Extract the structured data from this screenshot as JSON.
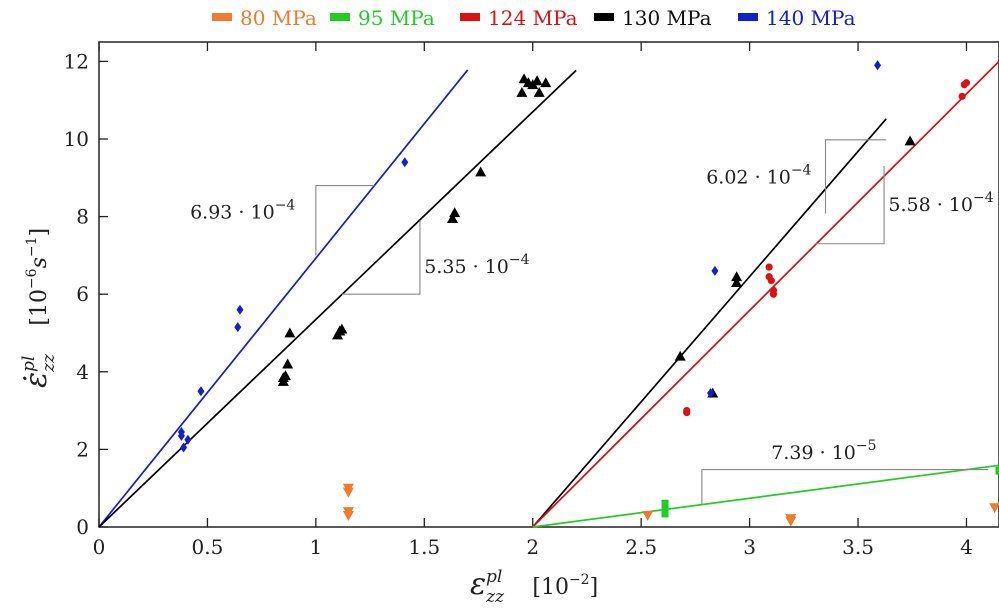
{
  "chart_data": {
    "type": "scatter",
    "xlabel": "ε̇zz^pl [10^-2]",
    "ylabel": "ε̇zz^pl [10^-6 s^-1]",
    "xlabel_parts": {
      "symbol": "ε",
      "sub": "zz",
      "sup": "pl",
      "unit": "[10",
      "unit_exp": "−2",
      "unit_end": "]"
    },
    "ylabel_parts": {
      "symbol": "ε̇",
      "sub": "zz",
      "sup": "pl",
      "unit": "[10",
      "unit_exp": "−6",
      "unit_mid": "s",
      "unit_exp2": "−1",
      "unit_end": "]"
    },
    "xlim": [
      0,
      4.15
    ],
    "ylim": [
      0,
      12.5
    ],
    "x_ticks": [
      0,
      0.5,
      1,
      1.5,
      2,
      2.5,
      3,
      3.5,
      4
    ],
    "x_tick_labels": [
      "0",
      "0.5",
      "1",
      "1.5",
      "2",
      "2.5",
      "3",
      "3.5",
      "4"
    ],
    "y_ticks": [
      0,
      2,
      4,
      6,
      8,
      10,
      12
    ],
    "y_tick_labels": [
      "0",
      "2",
      "4",
      "6",
      "8",
      "10",
      "12"
    ],
    "legend_placement": "top",
    "legend": [
      {
        "label": "80 MPa",
        "color": "#f07b2c"
      },
      {
        "label": "95 MPa",
        "color": "#22cc22"
      },
      {
        "label": "124 MPa",
        "color": "#dd1111"
      },
      {
        "label": "130 MPa",
        "color": "#000000"
      },
      {
        "label": "140 MPa",
        "color": "#1020cc"
      }
    ],
    "series": [
      {
        "name": "80 MPa",
        "color": "#f07b2c",
        "marker": "triangle-down",
        "points": [
          [
            1.15,
            0.9
          ],
          [
            1.15,
            1.0
          ],
          [
            1.15,
            0.3
          ],
          [
            1.15,
            0.4
          ],
          [
            2.53,
            0.3
          ],
          [
            3.19,
            0.15
          ],
          [
            3.19,
            0.22
          ],
          [
            4.13,
            0.5
          ]
        ]
      },
      {
        "name": "95 MPa",
        "color": "#22cc22",
        "marker": "square",
        "points": [
          [
            2.61,
            0.35
          ],
          [
            2.61,
            0.5
          ],
          [
            2.61,
            0.6
          ],
          [
            4.15,
            1.45
          ]
        ]
      },
      {
        "name": "124 MPa",
        "color": "#dd1111",
        "marker": "circle",
        "points": [
          [
            2.71,
            2.95
          ],
          [
            2.71,
            3.0
          ],
          [
            3.09,
            6.7
          ],
          [
            3.09,
            6.45
          ],
          [
            3.1,
            6.35
          ],
          [
            3.11,
            6.1
          ],
          [
            3.11,
            6.0
          ],
          [
            3.98,
            11.1
          ],
          [
            3.99,
            11.4
          ],
          [
            4.0,
            11.45
          ]
        ]
      },
      {
        "name": "130 MPa",
        "color": "#000000",
        "marker": "triangle-up",
        "points": [
          [
            0.85,
            3.75
          ],
          [
            0.85,
            3.85
          ],
          [
            0.86,
            3.9
          ],
          [
            0.87,
            4.2
          ],
          [
            0.88,
            5.0
          ],
          [
            1.1,
            4.95
          ],
          [
            1.11,
            5.05
          ],
          [
            1.12,
            5.1
          ],
          [
            1.63,
            7.95
          ],
          [
            1.64,
            8.1
          ],
          [
            1.76,
            9.15
          ],
          [
            1.95,
            11.2
          ],
          [
            1.96,
            11.55
          ],
          [
            1.98,
            11.45
          ],
          [
            2.0,
            11.4
          ],
          [
            2.02,
            11.5
          ],
          [
            2.03,
            11.2
          ],
          [
            2.06,
            11.45
          ],
          [
            2.68,
            4.4
          ],
          [
            2.83,
            3.45
          ],
          [
            2.94,
            6.3
          ],
          [
            2.94,
            6.45
          ],
          [
            3.74,
            9.95
          ]
        ]
      },
      {
        "name": "140 MPa",
        "color": "#1020cc",
        "marker": "diamond",
        "points": [
          [
            0.38,
            2.45
          ],
          [
            0.38,
            2.35
          ],
          [
            0.39,
            2.05
          ],
          [
            0.41,
            2.25
          ],
          [
            0.47,
            3.5
          ],
          [
            0.64,
            5.15
          ],
          [
            0.65,
            5.6
          ],
          [
            1.41,
            9.4
          ],
          [
            2.82,
            3.45
          ],
          [
            2.84,
            6.6
          ],
          [
            3.59,
            11.9
          ]
        ]
      }
    ],
    "fit_lines": [
      {
        "name": "140 MPa fit",
        "color": "#1020cc",
        "x1": 0,
        "y1": 0,
        "x2": 1.7,
        "y2": 11.78
      },
      {
        "name": "130 MPa fit A",
        "color": "#000000",
        "x1": 0,
        "y1": 0,
        "x2": 2.2,
        "y2": 11.77
      },
      {
        "name": "130 MPa fit B",
        "color": "#000000",
        "x1": 2.0,
        "y1": 0,
        "x2": 3.63,
        "y2": 10.52
      },
      {
        "name": "124 MPa fit",
        "color": "#dd1111",
        "x1": 2.0,
        "y1": 0,
        "x2": 4.15,
        "y2": 12.0
      },
      {
        "name": "95 MPa fit",
        "color": "#22cc22",
        "x1": 2.0,
        "y1": 0,
        "x2": 4.15,
        "y2": 1.59
      }
    ],
    "slope_triangles": [
      {
        "label": "6.93 · 10",
        "exp": "−4",
        "polyline": [
          [
            1.0,
            7.0
          ],
          [
            1.0,
            8.8
          ],
          [
            1.27,
            8.8
          ]
        ],
        "label_at": [
          0.42,
          7.95
        ]
      },
      {
        "label": "5.35 · 10",
        "exp": "−4",
        "polyline": [
          [
            1.12,
            6.0
          ],
          [
            1.48,
            6.0
          ],
          [
            1.48,
            7.9
          ]
        ],
        "label_at": [
          1.5,
          6.55
        ]
      },
      {
        "label": "6.02 · 10",
        "exp": "−4",
        "polyline": [
          [
            3.35,
            8.08
          ],
          [
            3.35,
            9.98
          ],
          [
            3.63,
            9.98
          ]
        ],
        "label_at": [
          2.8,
          8.85
        ]
      },
      {
        "label": "5.58 · 10",
        "exp": "−4",
        "polyline": [
          [
            3.3,
            7.3
          ],
          [
            3.62,
            7.3
          ],
          [
            3.62,
            9.3
          ]
        ],
        "label_at": [
          3.64,
          8.15
        ]
      },
      {
        "label": "7.39 · 10",
        "exp": "−5",
        "polyline": [
          [
            2.78,
            0.6
          ],
          [
            2.78,
            1.48
          ],
          [
            4.1,
            1.48
          ]
        ],
        "label_at": [
          3.1,
          1.75
        ]
      }
    ]
  }
}
